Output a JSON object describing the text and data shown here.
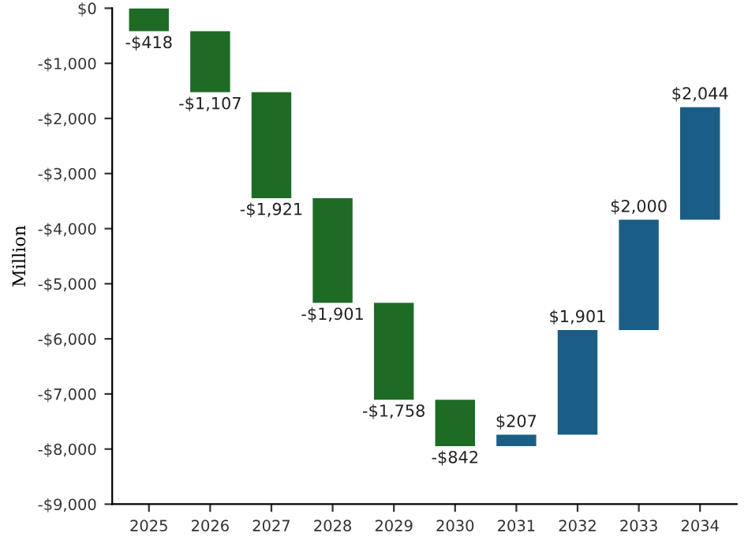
{
  "chart_data": {
    "type": "bar",
    "ylabel": "Million",
    "categories": [
      "2025",
      "2026",
      "2027",
      "2028",
      "2029",
      "2030",
      "2031",
      "2032",
      "2033",
      "2034"
    ],
    "values": [
      -418,
      -1107,
      -1921,
      -1901,
      -1758,
      -842,
      207,
      1901,
      2000,
      2044
    ],
    "base": [
      0,
      -418,
      -1525,
      -3446,
      -5347,
      -7105,
      -7947,
      -7740,
      -5839,
      -3839
    ],
    "colors": [
      "#1e6b26",
      "#1e6b26",
      "#1e6b26",
      "#1e6b26",
      "#1e6b26",
      "#1e6b26",
      "#1a5e85",
      "#1a5e85",
      "#1a5e85",
      "#1a5e85"
    ],
    "value_labels": [
      "-$418",
      "-$1,107",
      "-$1,921",
      "-$1,901",
      "-$1,758",
      "-$842",
      "$207",
      "$1,901",
      "$2,000",
      "$2,044"
    ],
    "ylim": [
      -9000,
      0
    ],
    "yticks": [
      {
        "value": 0,
        "label": "$0"
      },
      {
        "value": -1000,
        "label": "-$1,000"
      },
      {
        "value": -2000,
        "label": "-$2,000"
      },
      {
        "value": -3000,
        "label": "-$3,000"
      },
      {
        "value": -4000,
        "label": "-$4,000"
      },
      {
        "value": -5000,
        "label": "-$5,000"
      },
      {
        "value": -6000,
        "label": "-$6,000"
      },
      {
        "value": -7000,
        "label": "-$7,000"
      },
      {
        "value": -8000,
        "label": "-$8,000"
      },
      {
        "value": -9000,
        "label": "-$9,000"
      }
    ],
    "grid": false,
    "legend": false
  }
}
